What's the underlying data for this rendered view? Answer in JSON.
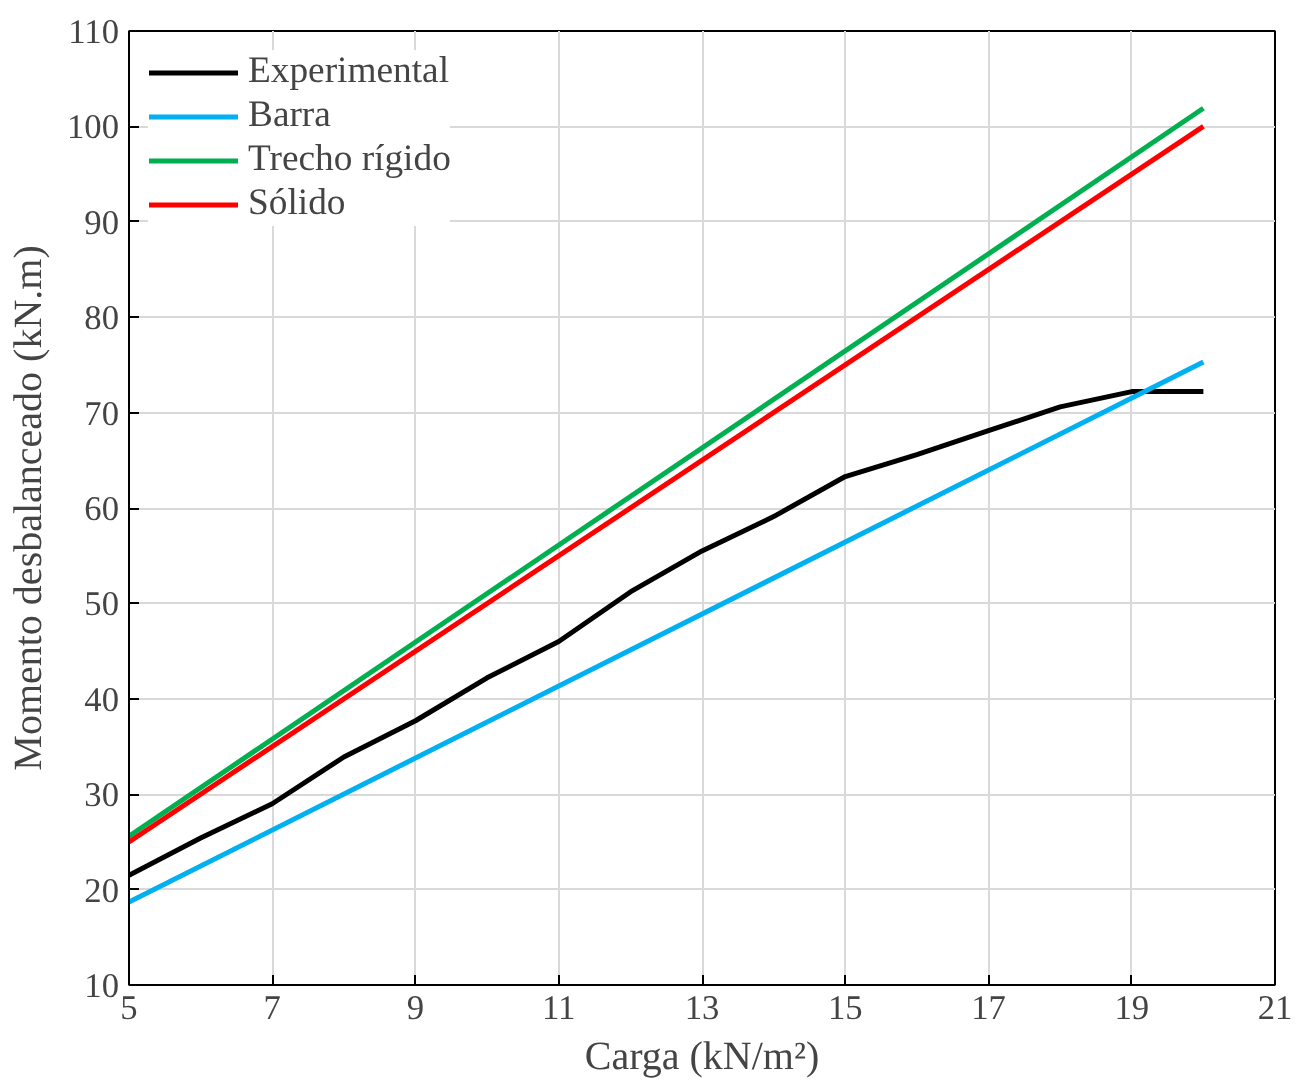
{
  "chart_data": {
    "type": "line",
    "xlabel": "Carga (kN/m²)",
    "ylabel": "Momento desbalanceado (kN.m)",
    "xlim": [
      5,
      21
    ],
    "xticks": [
      5,
      7,
      9,
      11,
      13,
      15,
      17,
      19,
      21
    ],
    "ylim": [
      10,
      110
    ],
    "yticks": [
      10,
      20,
      30,
      40,
      50,
      60,
      70,
      80,
      90,
      100,
      110
    ],
    "grid": true,
    "legend": "top left",
    "line_style": "solid",
    "marker": "none",
    "series": [
      {
        "name": "Experimental",
        "color": "#000000",
        "x": [
          5,
          6,
          7,
          8,
          9,
          10,
          11,
          12,
          13,
          14,
          15,
          16,
          17,
          18,
          19,
          20
        ],
        "values": [
          21.5,
          25.4,
          29.0,
          33.9,
          37.7,
          42.2,
          46.0,
          51.2,
          55.5,
          59.1,
          63.3,
          65.6,
          68.1,
          70.6,
          72.2,
          72.2
        ]
      },
      {
        "name": "Barra",
        "color": "#00b0f0",
        "x": [
          5,
          20
        ],
        "values": [
          18.7,
          75.3
        ]
      },
      {
        "name": "Trecho rígido",
        "color": "#00b050",
        "x": [
          5,
          20
        ],
        "values": [
          25.6,
          101.9
        ]
      },
      {
        "name": "Sólido",
        "color": "#ff0000",
        "x": [
          5,
          20
        ],
        "values": [
          25.0,
          100.0
        ]
      }
    ]
  }
}
